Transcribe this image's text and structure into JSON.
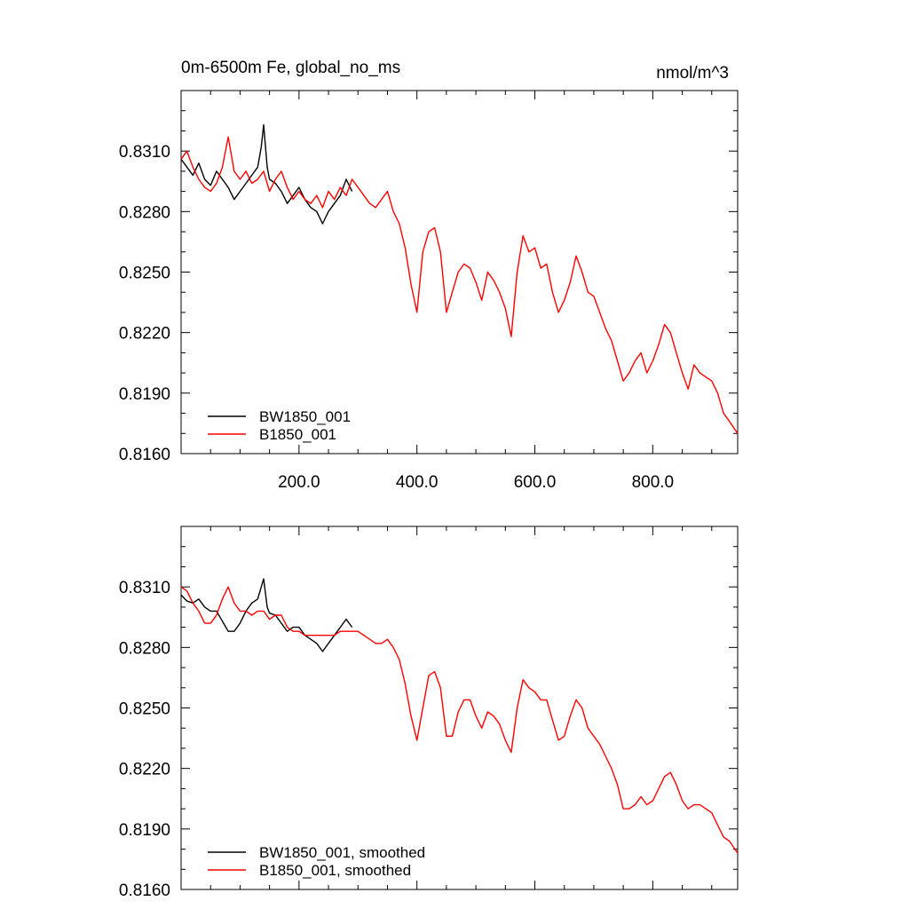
{
  "chart_data": [
    {
      "type": "line",
      "title": "0m-6500m Fe, global_no_ms",
      "units": "nmol/m^3",
      "xlim": [
        0,
        944
      ],
      "ylim": [
        0.816,
        0.834
      ],
      "yticks": [
        "0.8160",
        "0.8190",
        "0.8220",
        "0.8250",
        "0.8280",
        "0.8310"
      ],
      "xticks": [
        "200.0",
        "400.0",
        "600.0",
        "800.0"
      ],
      "legend_position": "bottom-left",
      "series": [
        {
          "name": "BW1850_001",
          "color": "#000000",
          "points": [
            [
              0,
              0.8306
            ],
            [
              10,
              0.8302
            ],
            [
              20,
              0.8298
            ],
            [
              30,
              0.8304
            ],
            [
              40,
              0.8296
            ],
            [
              50,
              0.8293
            ],
            [
              60,
              0.83
            ],
            [
              70,
              0.8296
            ],
            [
              80,
              0.8292
            ],
            [
              90,
              0.8286
            ],
            [
              100,
              0.829
            ],
            [
              110,
              0.8294
            ],
            [
              120,
              0.8298
            ],
            [
              130,
              0.8302
            ],
            [
              136,
              0.8312
            ],
            [
              140,
              0.8323
            ],
            [
              146,
              0.8302
            ],
            [
              150,
              0.8296
            ],
            [
              160,
              0.8294
            ],
            [
              170,
              0.829
            ],
            [
              180,
              0.8284
            ],
            [
              190,
              0.8288
            ],
            [
              200,
              0.8292
            ],
            [
              210,
              0.8286
            ],
            [
              220,
              0.8282
            ],
            [
              230,
              0.828
            ],
            [
              240,
              0.8274
            ],
            [
              250,
              0.828
            ],
            [
              260,
              0.8284
            ],
            [
              270,
              0.8288
            ],
            [
              280,
              0.8296
            ],
            [
              290,
              0.829
            ]
          ]
        },
        {
          "name": "B1850_001",
          "color": "#ff0000",
          "points": [
            [
              0,
              0.8306
            ],
            [
              10,
              0.831
            ],
            [
              20,
              0.8302
            ],
            [
              30,
              0.8296
            ],
            [
              40,
              0.8292
            ],
            [
              50,
              0.829
            ],
            [
              60,
              0.8294
            ],
            [
              70,
              0.8302
            ],
            [
              80,
              0.8317
            ],
            [
              90,
              0.83
            ],
            [
              100,
              0.8296
            ],
            [
              110,
              0.83
            ],
            [
              120,
              0.8294
            ],
            [
              130,
              0.8296
            ],
            [
              140,
              0.83
            ],
            [
              150,
              0.829
            ],
            [
              160,
              0.8296
            ],
            [
              170,
              0.83
            ],
            [
              180,
              0.8292
            ],
            [
              190,
              0.8286
            ],
            [
              200,
              0.829
            ],
            [
              210,
              0.8286
            ],
            [
              220,
              0.8284
            ],
            [
              230,
              0.8288
            ],
            [
              240,
              0.8282
            ],
            [
              250,
              0.829
            ],
            [
              260,
              0.8286
            ],
            [
              270,
              0.8292
            ],
            [
              280,
              0.8288
            ],
            [
              290,
              0.8296
            ],
            [
              300,
              0.8292
            ],
            [
              310,
              0.8288
            ],
            [
              320,
              0.8284
            ],
            [
              330,
              0.8282
            ],
            [
              340,
              0.8286
            ],
            [
              350,
              0.829
            ],
            [
              360,
              0.828
            ],
            [
              370,
              0.8274
            ],
            [
              380,
              0.8262
            ],
            [
              390,
              0.8244
            ],
            [
              400,
              0.823
            ],
            [
              410,
              0.826
            ],
            [
              420,
              0.827
            ],
            [
              430,
              0.8272
            ],
            [
              440,
              0.826
            ],
            [
              450,
              0.823
            ],
            [
              460,
              0.824
            ],
            [
              470,
              0.825
            ],
            [
              480,
              0.8254
            ],
            [
              490,
              0.8252
            ],
            [
              500,
              0.8245
            ],
            [
              510,
              0.8236
            ],
            [
              520,
              0.825
            ],
            [
              530,
              0.8246
            ],
            [
              540,
              0.824
            ],
            [
              550,
              0.8232
            ],
            [
              560,
              0.8218
            ],
            [
              570,
              0.825
            ],
            [
              580,
              0.8268
            ],
            [
              590,
              0.826
            ],
            [
              600,
              0.8262
            ],
            [
              610,
              0.8252
            ],
            [
              620,
              0.8254
            ],
            [
              630,
              0.824
            ],
            [
              640,
              0.823
            ],
            [
              650,
              0.8236
            ],
            [
              660,
              0.8245
            ],
            [
              670,
              0.8258
            ],
            [
              680,
              0.825
            ],
            [
              690,
              0.824
            ],
            [
              700,
              0.8238
            ],
            [
              710,
              0.823
            ],
            [
              720,
              0.8222
            ],
            [
              730,
              0.8216
            ],
            [
              740,
              0.8206
            ],
            [
              750,
              0.8196
            ],
            [
              760,
              0.82
            ],
            [
              770,
              0.8206
            ],
            [
              780,
              0.821
            ],
            [
              790,
              0.82
            ],
            [
              800,
              0.8206
            ],
            [
              810,
              0.8214
            ],
            [
              820,
              0.8224
            ],
            [
              830,
              0.822
            ],
            [
              840,
              0.821
            ],
            [
              850,
              0.82
            ],
            [
              860,
              0.8192
            ],
            [
              870,
              0.8204
            ],
            [
              880,
              0.82
            ],
            [
              890,
              0.8198
            ],
            [
              900,
              0.8196
            ],
            [
              910,
              0.819
            ],
            [
              920,
              0.818
            ],
            [
              930,
              0.8176
            ],
            [
              944,
              0.817
            ]
          ]
        }
      ]
    },
    {
      "type": "line",
      "xlim": [
        0,
        944
      ],
      "ylim": [
        0.816,
        0.834
      ],
      "yticks": [
        "0.8160",
        "0.8190",
        "0.8220",
        "0.8250",
        "0.8280",
        "0.8310"
      ],
      "legend_position": "bottom-left",
      "series": [
        {
          "name": "BW1850_001, smoothed",
          "color": "#000000",
          "points": [
            [
              0,
              0.8306
            ],
            [
              10,
              0.8303
            ],
            [
              20,
              0.8302
            ],
            [
              30,
              0.8304
            ],
            [
              40,
              0.83
            ],
            [
              50,
              0.8298
            ],
            [
              60,
              0.8298
            ],
            [
              70,
              0.8293
            ],
            [
              80,
              0.8288
            ],
            [
              90,
              0.8288
            ],
            [
              100,
              0.8292
            ],
            [
              110,
              0.8298
            ],
            [
              120,
              0.8302
            ],
            [
              130,
              0.8304
            ],
            [
              136,
              0.831
            ],
            [
              140,
              0.8314
            ],
            [
              146,
              0.83
            ],
            [
              150,
              0.8297
            ],
            [
              160,
              0.8296
            ],
            [
              170,
              0.8292
            ],
            [
              180,
              0.8288
            ],
            [
              190,
              0.829
            ],
            [
              200,
              0.829
            ],
            [
              210,
              0.8286
            ],
            [
              220,
              0.8284
            ],
            [
              230,
              0.8282
            ],
            [
              240,
              0.8278
            ],
            [
              250,
              0.8282
            ],
            [
              260,
              0.8286
            ],
            [
              270,
              0.829
            ],
            [
              280,
              0.8294
            ],
            [
              290,
              0.829
            ]
          ]
        },
        {
          "name": "B1850_001, smoothed",
          "color": "#ff0000",
          "points": [
            [
              0,
              0.831
            ],
            [
              10,
              0.8308
            ],
            [
              20,
              0.8302
            ],
            [
              30,
              0.8298
            ],
            [
              40,
              0.8292
            ],
            [
              50,
              0.8292
            ],
            [
              60,
              0.8296
            ],
            [
              70,
              0.8304
            ],
            [
              80,
              0.831
            ],
            [
              90,
              0.8302
            ],
            [
              100,
              0.8298
            ],
            [
              110,
              0.8298
            ],
            [
              120,
              0.8296
            ],
            [
              130,
              0.8298
            ],
            [
              140,
              0.8298
            ],
            [
              150,
              0.8294
            ],
            [
              160,
              0.8296
            ],
            [
              170,
              0.8296
            ],
            [
              180,
              0.829
            ],
            [
              190,
              0.8288
            ],
            [
              200,
              0.8288
            ],
            [
              210,
              0.8286
            ],
            [
              220,
              0.8286
            ],
            [
              230,
              0.8286
            ],
            [
              240,
              0.8286
            ],
            [
              250,
              0.8286
            ],
            [
              260,
              0.8286
            ],
            [
              270,
              0.8288
            ],
            [
              280,
              0.8288
            ],
            [
              290,
              0.8288
            ],
            [
              300,
              0.8288
            ],
            [
              310,
              0.8286
            ],
            [
              320,
              0.8284
            ],
            [
              330,
              0.8282
            ],
            [
              340,
              0.8282
            ],
            [
              350,
              0.8284
            ],
            [
              360,
              0.828
            ],
            [
              370,
              0.8274
            ],
            [
              380,
              0.8262
            ],
            [
              390,
              0.8246
            ],
            [
              400,
              0.8234
            ],
            [
              410,
              0.825
            ],
            [
              420,
              0.8266
            ],
            [
              430,
              0.8268
            ],
            [
              440,
              0.826
            ],
            [
              450,
              0.8236
            ],
            [
              460,
              0.8236
            ],
            [
              470,
              0.8248
            ],
            [
              480,
              0.8254
            ],
            [
              490,
              0.8254
            ],
            [
              500,
              0.8246
            ],
            [
              510,
              0.824
            ],
            [
              520,
              0.8248
            ],
            [
              530,
              0.8246
            ],
            [
              540,
              0.8242
            ],
            [
              550,
              0.8234
            ],
            [
              560,
              0.8228
            ],
            [
              570,
              0.825
            ],
            [
              580,
              0.8264
            ],
            [
              590,
              0.826
            ],
            [
              600,
              0.8258
            ],
            [
              610,
              0.8254
            ],
            [
              620,
              0.8254
            ],
            [
              630,
              0.8244
            ],
            [
              640,
              0.8234
            ],
            [
              650,
              0.8236
            ],
            [
              660,
              0.8246
            ],
            [
              670,
              0.8254
            ],
            [
              680,
              0.825
            ],
            [
              690,
              0.824
            ],
            [
              700,
              0.8236
            ],
            [
              710,
              0.8232
            ],
            [
              720,
              0.8226
            ],
            [
              730,
              0.822
            ],
            [
              740,
              0.8212
            ],
            [
              750,
              0.82
            ],
            [
              760,
              0.82
            ],
            [
              770,
              0.8202
            ],
            [
              780,
              0.8206
            ],
            [
              790,
              0.8202
            ],
            [
              800,
              0.8204
            ],
            [
              810,
              0.821
            ],
            [
              820,
              0.8216
            ],
            [
              830,
              0.8218
            ],
            [
              840,
              0.8212
            ],
            [
              850,
              0.8204
            ],
            [
              860,
              0.82
            ],
            [
              870,
              0.8202
            ],
            [
              880,
              0.8202
            ],
            [
              890,
              0.82
            ],
            [
              900,
              0.8198
            ],
            [
              910,
              0.8192
            ],
            [
              920,
              0.8186
            ],
            [
              930,
              0.8184
            ],
            [
              944,
              0.8178
            ]
          ]
        }
      ]
    }
  ]
}
